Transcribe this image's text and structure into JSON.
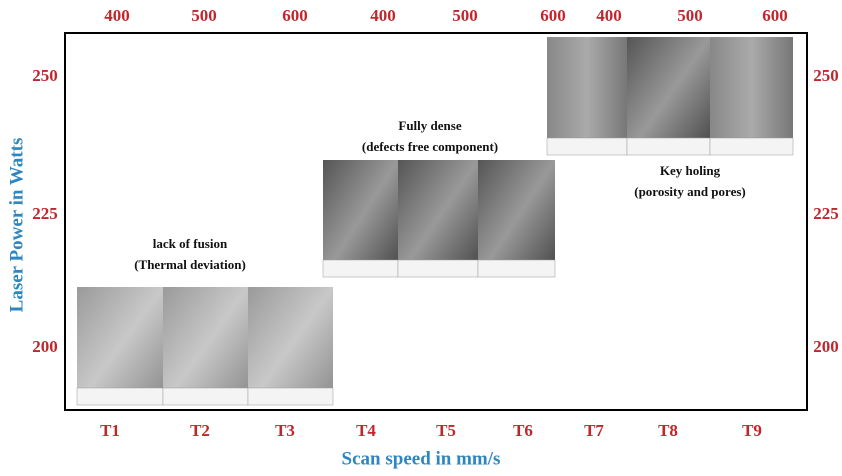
{
  "x_axis_title": "Scan speed in mm/s",
  "y_axis_title": "Laser Power in Watts",
  "top_labels": [
    "400",
    "500",
    "600",
    "400",
    "500",
    "600",
    "400",
    "500",
    "600"
  ],
  "left_labels": [
    "250",
    "225",
    "200"
  ],
  "right_labels": [
    "250",
    "225",
    "200"
  ],
  "bottom_labels": [
    "T1",
    "T2",
    "T3",
    "T4",
    "T5",
    "T6",
    "T7",
    "T8",
    "T9"
  ],
  "groups": [
    {
      "title": "lack of fusion",
      "subtitle": "(Thermal deviation)"
    },
    {
      "title": "Fully dense",
      "subtitle": "(defects free component)"
    },
    {
      "title": "Key holing",
      "subtitle": "(porosity and pores)"
    }
  ]
}
